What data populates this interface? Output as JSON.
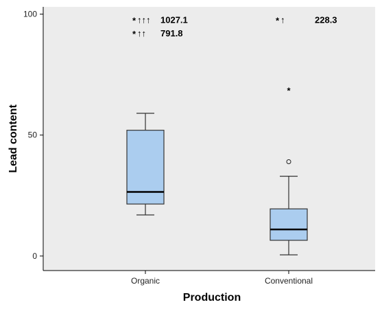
{
  "chart_data": {
    "type": "box",
    "title": "",
    "xlabel": "Production",
    "ylabel": "Lead content",
    "ylim": [
      -6,
      103
    ],
    "yticks": [
      "0",
      "50",
      "100"
    ],
    "grid": false,
    "colors": {
      "plot_bg": "#ececec",
      "box_fill": "#abcdef",
      "box_edge": "#333333"
    },
    "categories": [
      "Organic",
      "Conventional"
    ],
    "boxes": [
      {
        "category": "Organic",
        "whisker_low": 17,
        "q1": 21.5,
        "median": 26.5,
        "q3": 52,
        "whisker_high": 59,
        "outliers": [],
        "extremes": [],
        "off_scale": [
          {
            "y": 97.5,
            "arrow_text": "↑↑↑",
            "label": "1027.1"
          },
          {
            "y": 92,
            "arrow_text": "↑↑",
            "label": "791.8"
          }
        ]
      },
      {
        "category": "Conventional",
        "whisker_low": 0.5,
        "q1": 6.5,
        "median": 11,
        "q3": 19.5,
        "whisker_high": 33,
        "outliers": [
          39
        ],
        "extremes": [
          68.5
        ],
        "off_scale": [
          {
            "y": 97.5,
            "arrow_text": "↑",
            "label": "228.3"
          }
        ]
      }
    ]
  }
}
